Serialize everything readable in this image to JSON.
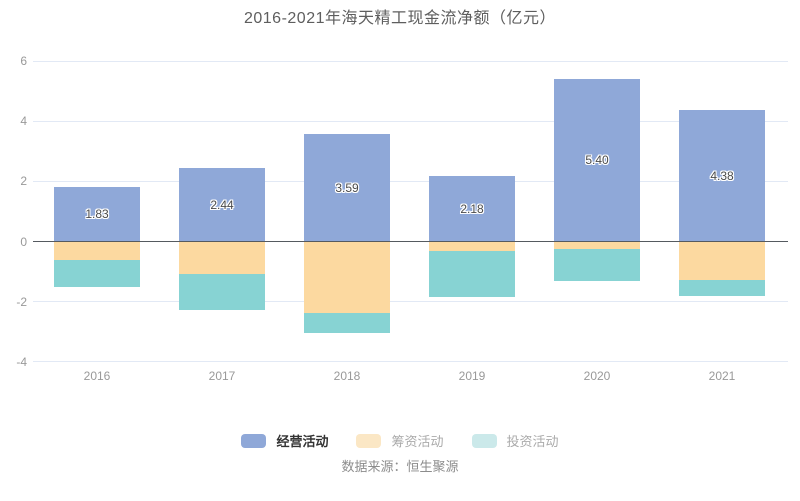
{
  "chart_data": {
    "type": "bar",
    "stacked": true,
    "title": "2016-2021年海天精工现金流净额（亿元）",
    "categories": [
      "2016",
      "2017",
      "2018",
      "2019",
      "2020",
      "2021"
    ],
    "series": [
      {
        "name": "经营活动",
        "slug": "operating",
        "color": "#8FA8D8",
        "values": [
          1.83,
          2.44,
          3.59,
          2.18,
          5.4,
          4.38
        ],
        "labels": [
          "1.83",
          "2.44",
          "3.59",
          "2.18",
          "5.40",
          "4.38"
        ]
      },
      {
        "name": "筹资活动",
        "slug": "financing",
        "color": "#FCD9A0",
        "values": [
          -0.6,
          -1.07,
          -2.39,
          -0.33,
          -0.26,
          -1.28
        ]
      },
      {
        "name": "投资活动",
        "slug": "investing",
        "color": "#87D3D3",
        "values": [
          -0.9,
          -1.2,
          -0.67,
          -1.52,
          -1.04,
          -0.55
        ]
      }
    ],
    "ylim": [
      -4,
      6
    ],
    "yticks": [
      6,
      4,
      2,
      0,
      -2,
      -4
    ],
    "grid": true,
    "legend_position": "bottom"
  },
  "legend": {
    "items": [
      {
        "label": "经营活动",
        "slug": "operating",
        "swatch": "#8FA8D8",
        "active": true
      },
      {
        "label": "筹资活动",
        "slug": "financing",
        "swatch": "#FBE7C5",
        "active": false
      },
      {
        "label": "投资活动",
        "slug": "investing",
        "swatch": "#CBE9EA",
        "active": false
      }
    ]
  },
  "footer": {
    "source_label": "数据来源：恒生聚源"
  }
}
